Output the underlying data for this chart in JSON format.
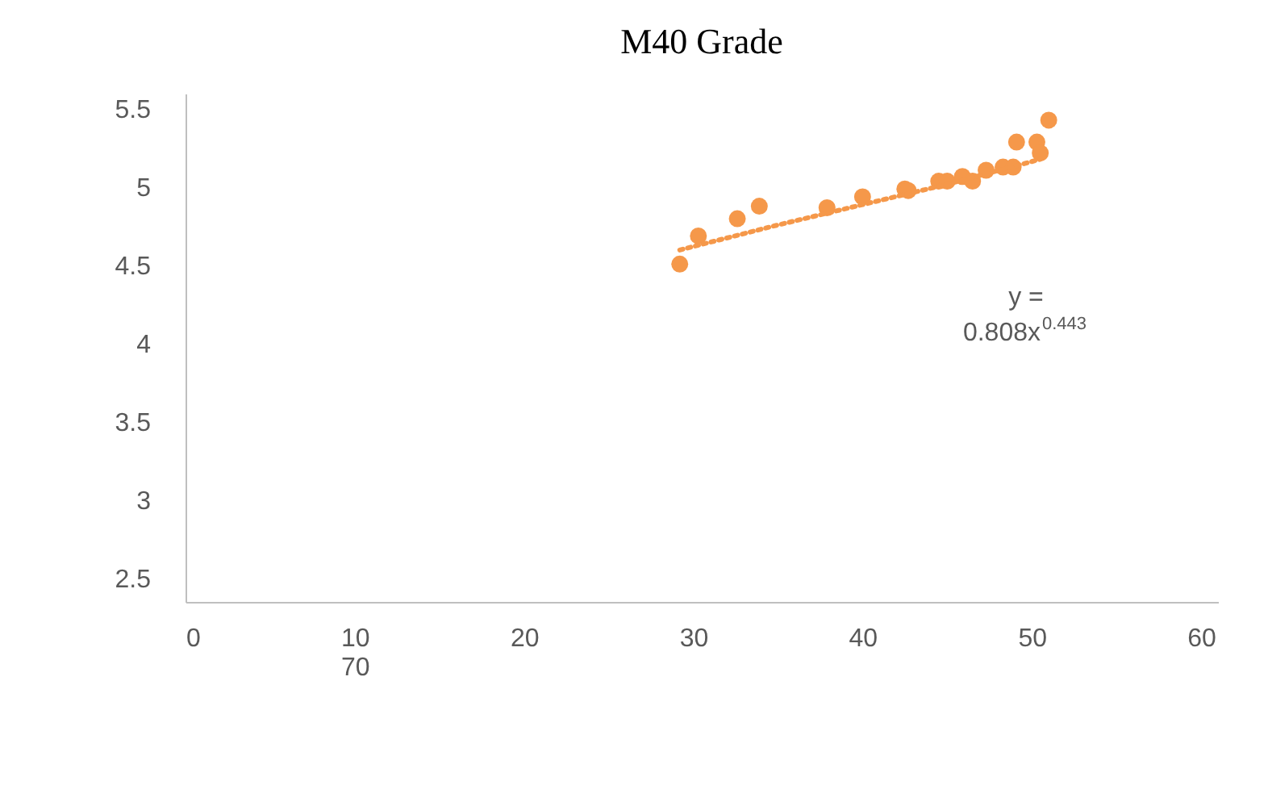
{
  "chart_data": {
    "type": "scatter",
    "title": "M40 Grade",
    "xlim": [
      0,
      61
    ],
    "xticks": [
      0,
      {
        "value": 10,
        "label": "10\n70"
      },
      20,
      30,
      40,
      50,
      60
    ],
    "ylim": [
      2.35,
      5.6
    ],
    "yticks": [
      2.5,
      3,
      3.5,
      4,
      4.5,
      5,
      5.5
    ],
    "grid": false,
    "series": [
      {
        "color": "#f5984a",
        "x": [
          29.2,
          30.3,
          32.6,
          33.9,
          37.9,
          40.0,
          42.5,
          42.7,
          44.5,
          45.0,
          45.9,
          46.5,
          47.3,
          48.3,
          48.9,
          49.1,
          50.3,
          50.5,
          51.0
        ],
        "values": [
          4.51,
          4.69,
          4.8,
          4.88,
          4.87,
          4.94,
          4.99,
          4.98,
          5.04,
          5.04,
          5.07,
          5.04,
          5.11,
          5.13,
          5.13,
          5.29,
          5.29,
          5.22,
          5.43
        ]
      },
      {
        "type": "line",
        "line_style": "dotted",
        "marker": "none",
        "color": "#f5984a",
        "x": [
          29.2,
          35,
          40,
          45,
          50.5
        ],
        "values": [
          4.6,
          4.76,
          4.89,
          5.02,
          5.18
        ]
      }
    ],
    "annotations": [
      "y = 0.808x$^{0.443}$"
    ]
  }
}
